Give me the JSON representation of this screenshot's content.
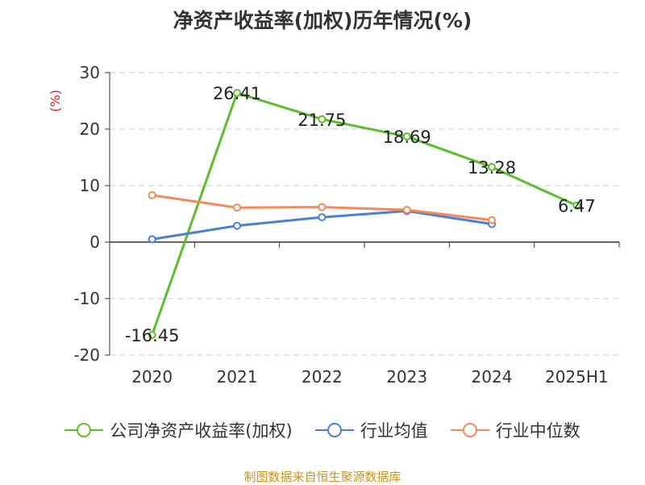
{
  "chart_data": {
    "type": "line",
    "title": "净资产收益率(加权)历年情况(%)",
    "ylabel": "(%)",
    "categories": [
      "2020",
      "2021",
      "2022",
      "2023",
      "2024",
      "2025H1"
    ],
    "ylim": [
      -20,
      30
    ],
    "yticks": [
      30,
      20,
      10,
      0,
      -10,
      -20
    ],
    "grid": true,
    "legend_position": "bottom",
    "series": [
      {
        "name": "公司净资产收益率(加权)",
        "color": "#5cbe2a",
        "values": [
          -16.45,
          26.41,
          21.75,
          18.69,
          13.28,
          6.47
        ],
        "labels": [
          "-16.45",
          "26.41",
          "21.75",
          "18.69",
          "13.28",
          "6.47"
        ]
      },
      {
        "name": "行业均值",
        "color": "#4a7fd6",
        "values": [
          0.5,
          2.9,
          4.4,
          5.5,
          3.2,
          null
        ]
      },
      {
        "name": "行业中位数",
        "color": "#f28a5a",
        "values": [
          8.3,
          6.1,
          6.2,
          5.7,
          3.9,
          null
        ]
      }
    ]
  },
  "footer": {
    "source": "制图数据来自恒生聚源数据库"
  }
}
